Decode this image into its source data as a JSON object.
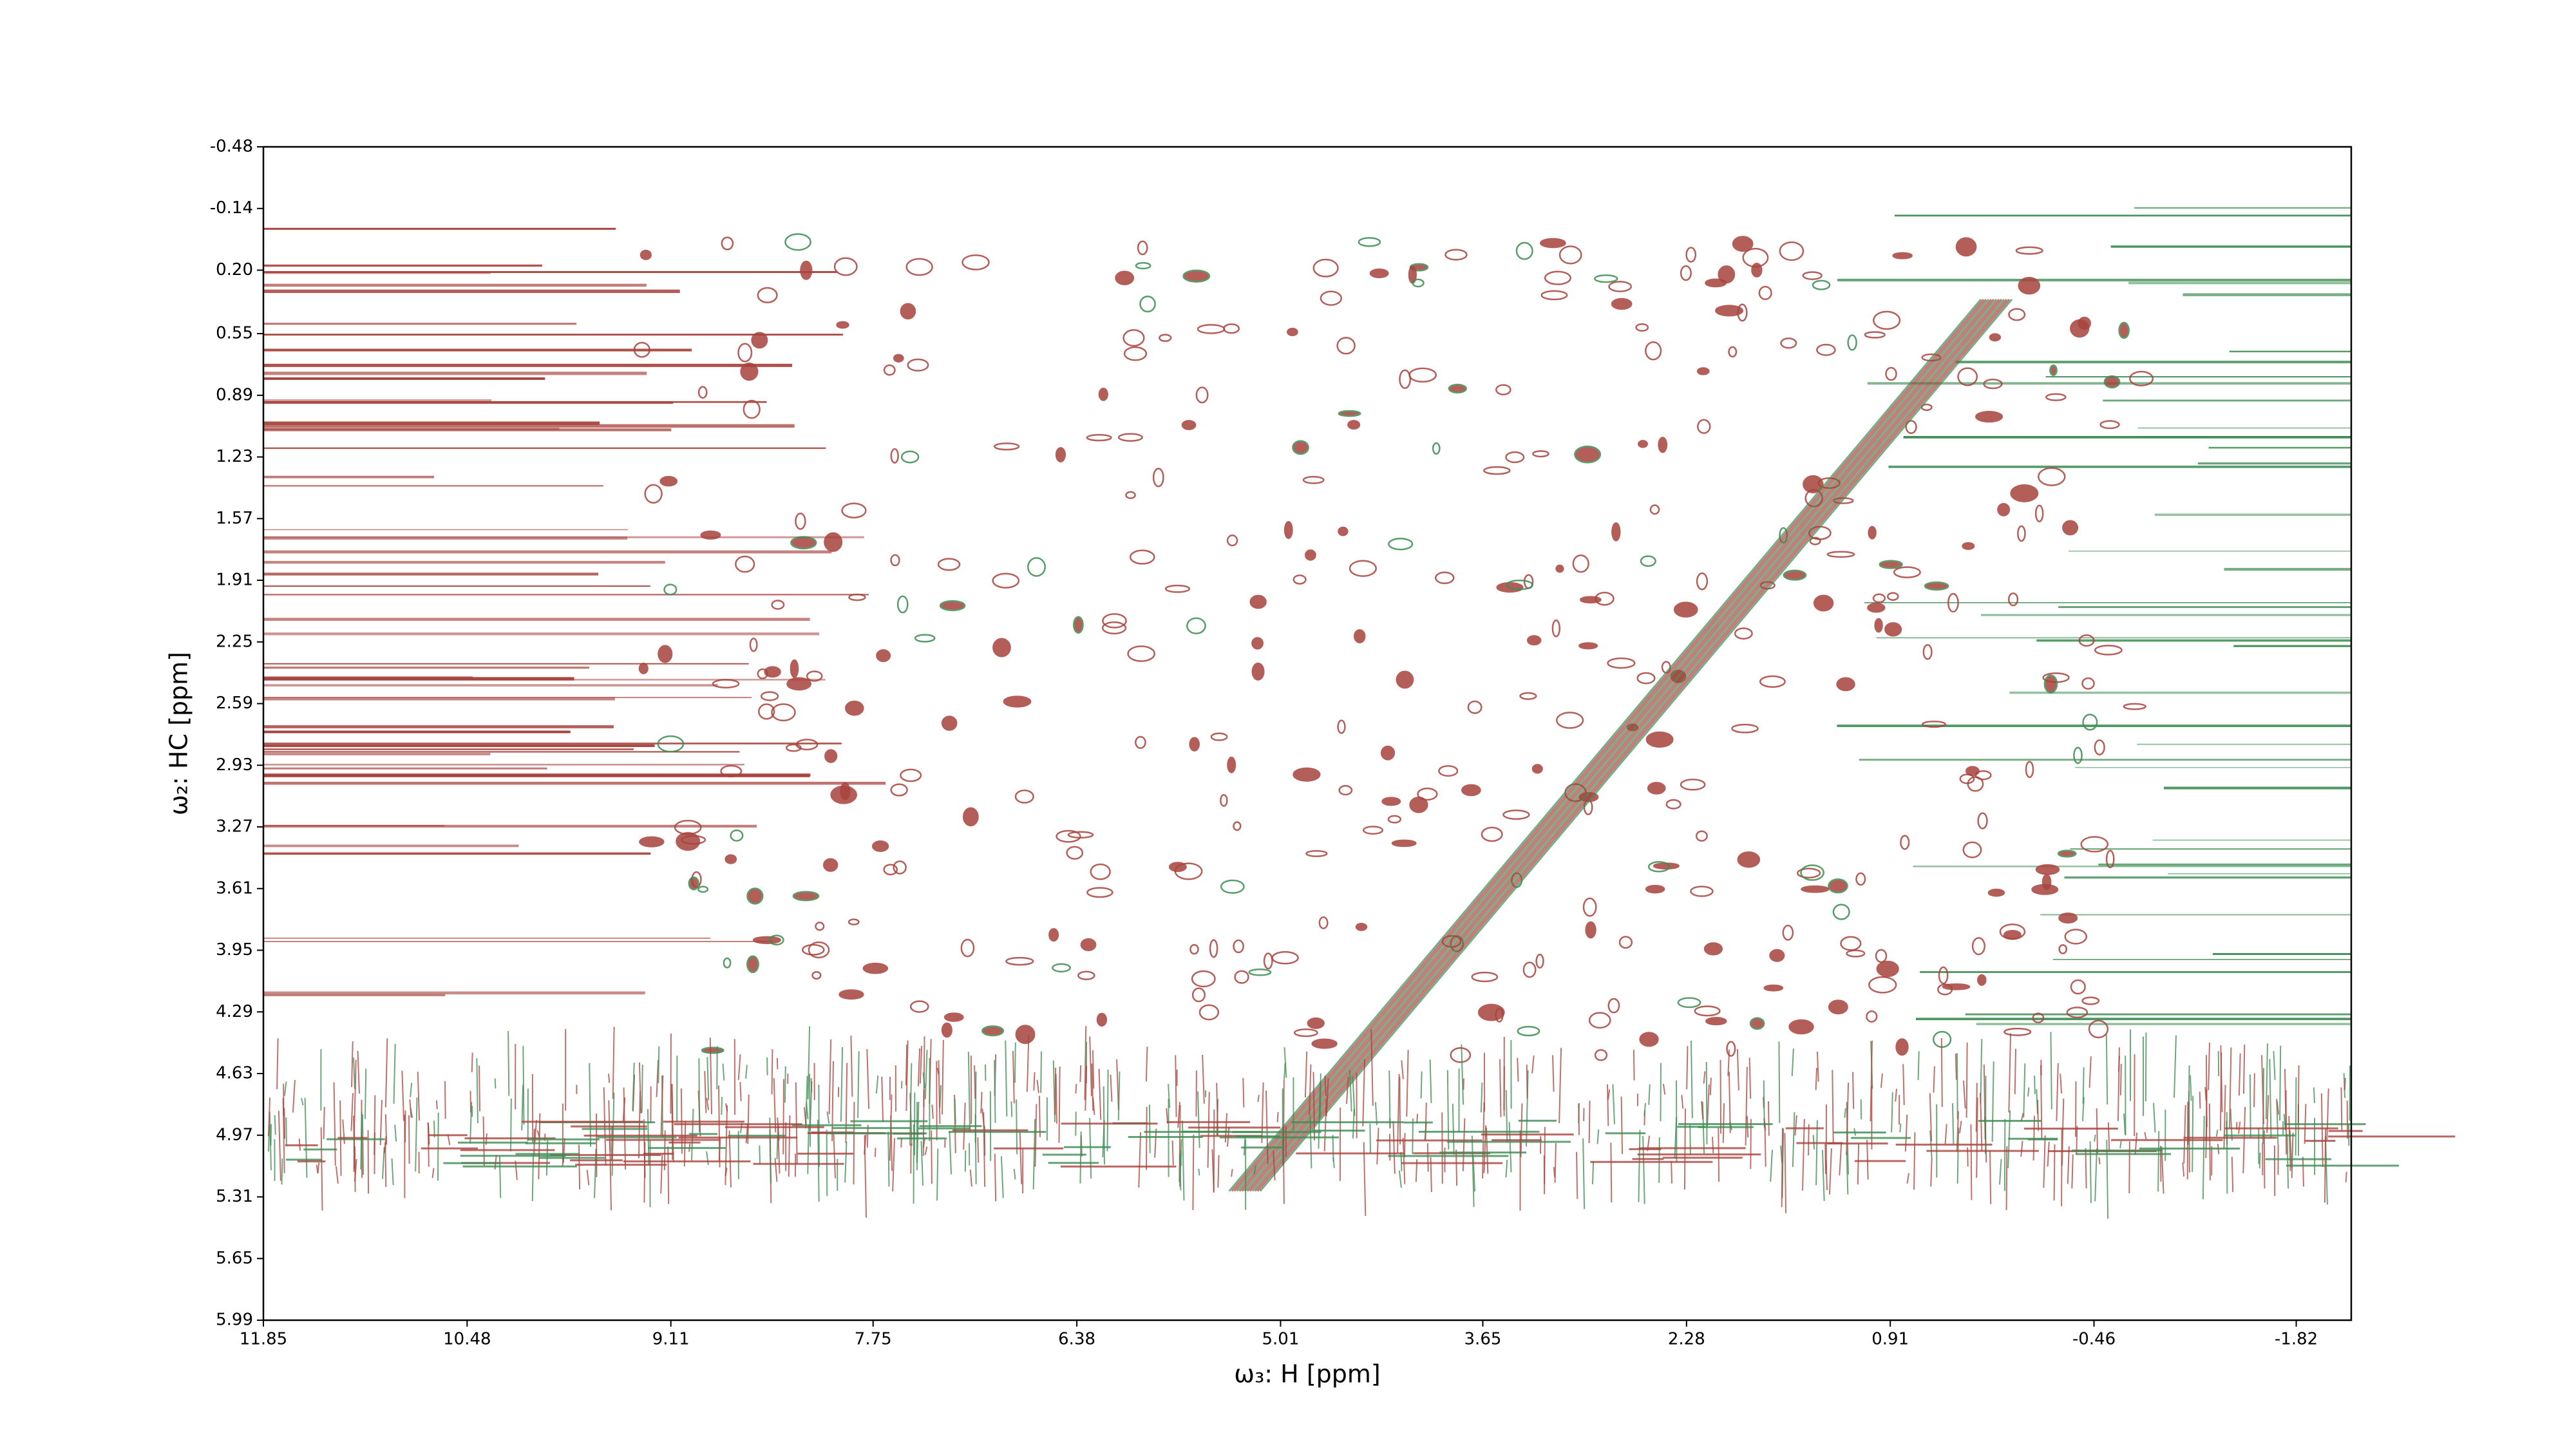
{
  "chart_data": {
    "type": "contour",
    "x_label": "ω₃: H [ppm]",
    "y_label": "ω₂: HC [ppm]",
    "xlim": [
      11.85,
      -2.19
    ],
    "xticks": [
      11.85,
      10.48,
      9.11,
      7.75,
      6.38,
      5.01,
      3.65,
      2.28,
      0.91,
      -0.46,
      -1.82
    ],
    "ylim": [
      -0.48,
      5.99
    ],
    "yticks": [
      -0.48,
      -0.14,
      {
        "value": 0.2,
        "label": "0.20"
      },
      0.55,
      0.89,
      1.23,
      1.57,
      1.91,
      2.25,
      2.59,
      2.93,
      3.27,
      3.61,
      3.95,
      4.29,
      4.63,
      4.97,
      5.31,
      5.65,
      5.99
    ],
    "colors": [
      "#a8433d",
      "#3d8c52"
    ]
  }
}
